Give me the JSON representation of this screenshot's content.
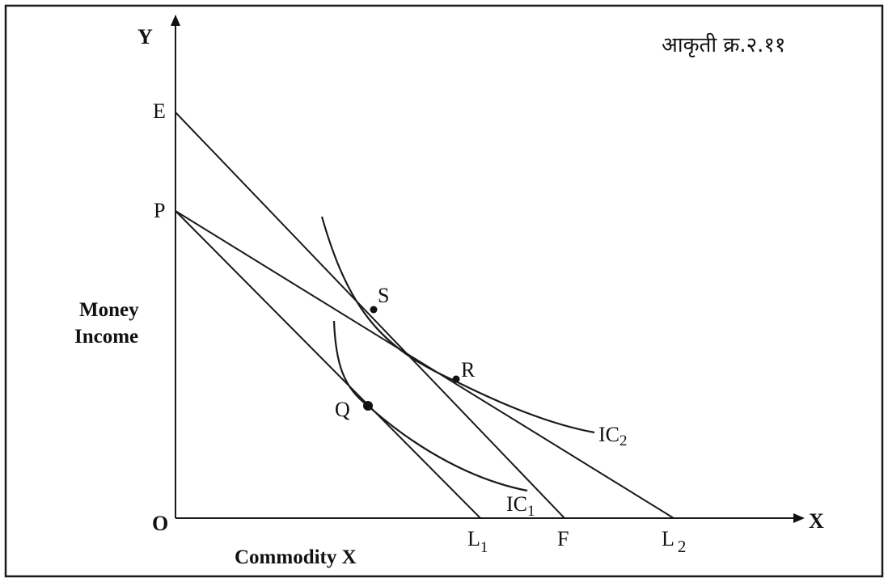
{
  "figure_caption": "आकृती क्र.२.११",
  "axes": {
    "origin_label": "O",
    "x_label": "X",
    "y_label": "Y",
    "x_title": "Commodity X",
    "y_title_line1": "Money",
    "y_title_line2": "Income"
  },
  "points": {
    "E": "E",
    "P": "P",
    "S": "S",
    "R": "R",
    "Q": "Q",
    "F": "F"
  },
  "budget_lines": {
    "L1_main": "L",
    "L1_sub": "1",
    "L2_main": "L",
    "L2_sub": "2"
  },
  "curves": {
    "IC1_main": "IC",
    "IC1_sub": "1",
    "IC2_main": "IC",
    "IC2_sub": "2"
  }
}
